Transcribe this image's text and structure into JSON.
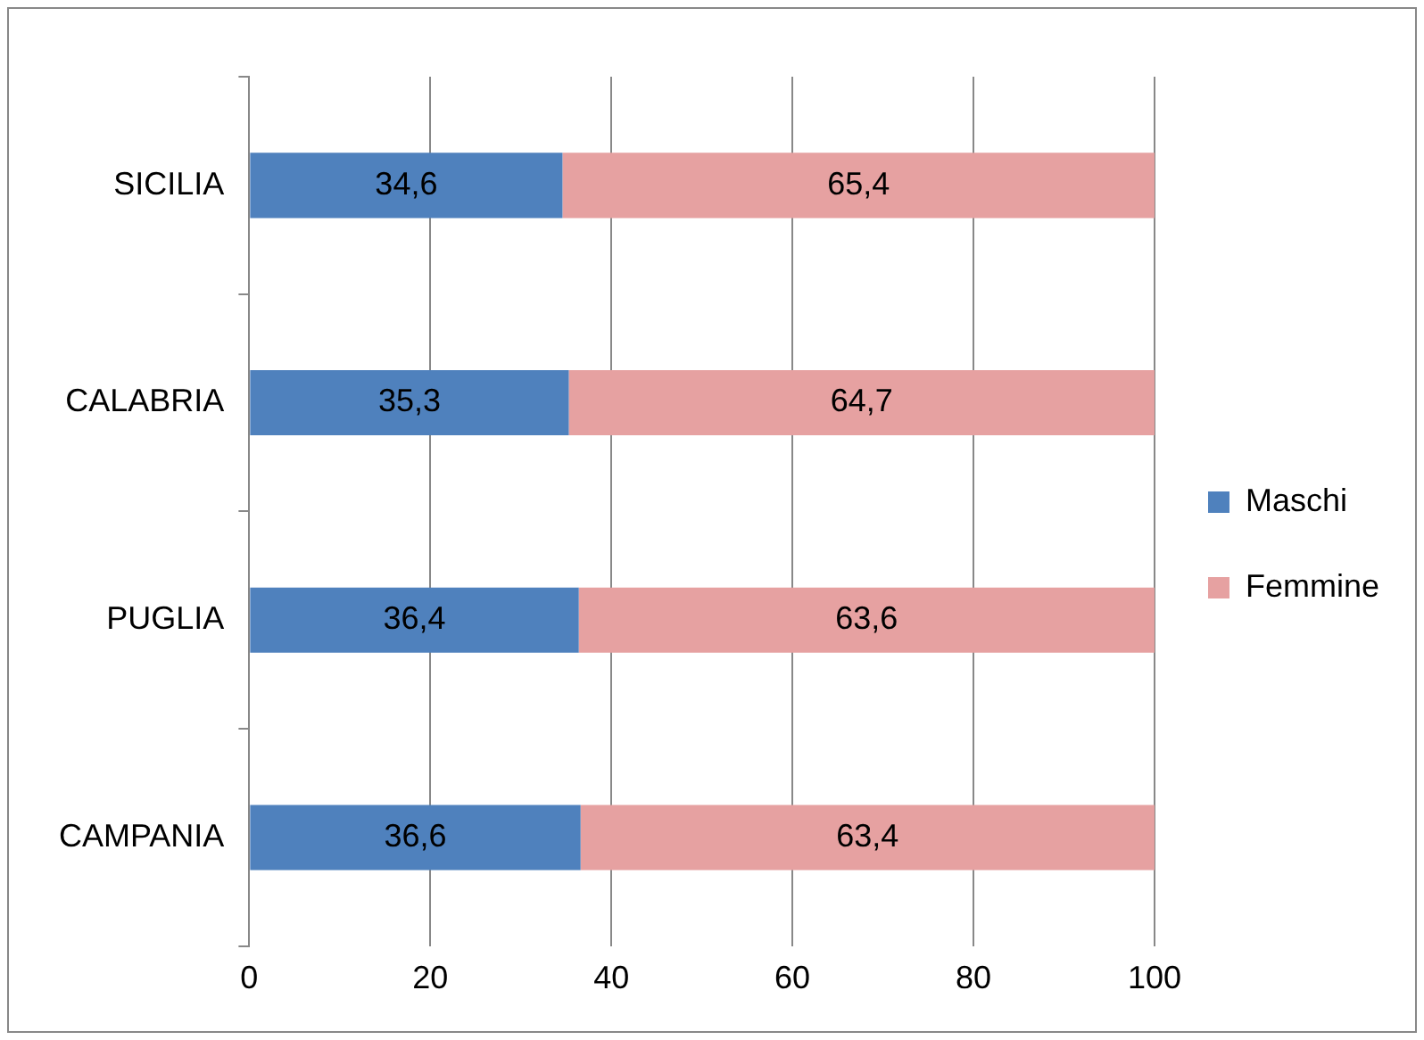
{
  "chart_data": {
    "type": "bar",
    "orientation": "horizontal",
    "stacked": true,
    "categories": [
      "SICILIA",
      "CALABRIA",
      "PUGLIA",
      "CAMPANIA"
    ],
    "series": [
      {
        "name": "Maschi",
        "color": "#4f81bd",
        "values": [
          34.6,
          35.3,
          36.4,
          36.6
        ],
        "value_labels": [
          "34,6",
          "35,3",
          "36,4",
          "36,6"
        ]
      },
      {
        "name": "Femmine",
        "color": "#e6a1a1",
        "values": [
          65.4,
          64.7,
          63.6,
          63.4
        ],
        "value_labels": [
          "65,4",
          "64,7",
          "63,6",
          "63,4"
        ]
      }
    ],
    "xlim": [
      0,
      100
    ],
    "xticks": [
      0,
      20,
      40,
      60,
      80,
      100
    ],
    "grid": "x",
    "legend": "right"
  }
}
